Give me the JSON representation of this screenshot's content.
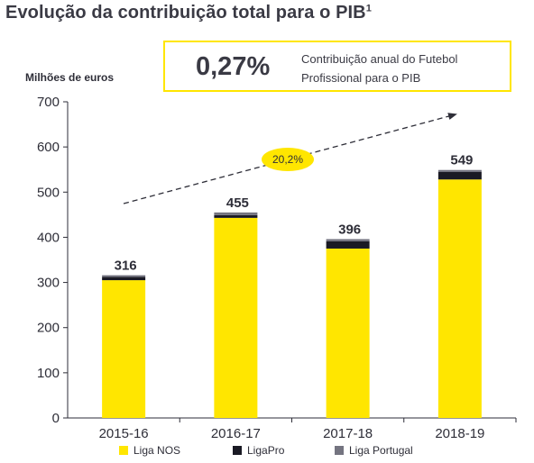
{
  "header": {
    "title": "Evolução da contribuição total para o PIB",
    "title_sup": "1"
  },
  "callout": {
    "value": "0,27%",
    "description_line1": "Contribuição anual do Futebol",
    "description_line2": "Profissional para o PIB"
  },
  "chart_data": {
    "type": "bar",
    "stacked": true,
    "ylabel": "Milhões de euros",
    "ylim": [
      0,
      700
    ],
    "yticks": [
      0,
      100,
      200,
      300,
      400,
      500,
      600,
      700
    ],
    "categories": [
      "2015-16",
      "2016-17",
      "2017-18",
      "2018-19"
    ],
    "series": [
      {
        "name": "Liga NOS",
        "color": "#ffe600",
        "values": [
          305,
          443,
          375,
          528
        ]
      },
      {
        "name": "LigaPro",
        "color": "#1a1a24",
        "values": [
          7,
          6,
          16,
          17
        ]
      },
      {
        "name": "Liga Portugal",
        "color": "#747480",
        "values": [
          4,
          6,
          5,
          4
        ]
      }
    ],
    "totals": [
      316,
      455,
      396,
      549
    ],
    "total_labels": [
      "316",
      "455",
      "396",
      "549"
    ],
    "growth_annotation": "20,2%",
    "grid": false,
    "legend_position": "bottom"
  },
  "colors": {
    "accent": "#ffe600",
    "text": "#2e2e38",
    "axis": "#2e2e38"
  }
}
